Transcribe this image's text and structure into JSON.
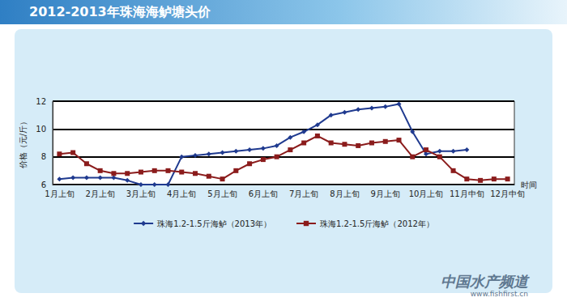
{
  "chart_data": {
    "type": "line",
    "title": "2012-2013年珠海海鲈塘头价",
    "y_label": "价格（元/斤）",
    "x_label": "时间",
    "categories": [
      "1月上旬",
      null,
      null,
      "2月上旬",
      null,
      null,
      "3月上旬",
      null,
      null,
      "4月上旬",
      null,
      null,
      "5月上旬",
      null,
      null,
      "6月上旬",
      null,
      null,
      "7月上旬",
      null,
      null,
      "8月上旬",
      null,
      null,
      "9月上旬",
      null,
      null,
      "10月上旬",
      null,
      null,
      "11月中旬",
      null,
      null,
      "12月中旬"
    ],
    "series": [
      {
        "name": "珠海1.2-1.5斤海鲈（2013年）",
        "color": "#1f3a8f",
        "marker": "diamond",
        "line_style": "solid",
        "values": [
          6.4,
          6.5,
          6.5,
          6.5,
          6.5,
          6.3,
          6.0,
          6.0,
          6.0,
          8.0,
          8.1,
          8.2,
          8.3,
          8.4,
          8.5,
          8.6,
          8.8,
          9.4,
          9.8,
          10.3,
          11.0,
          11.2,
          11.4,
          11.5,
          11.6,
          11.8,
          9.8,
          8.2,
          8.4,
          8.4,
          8.5,
          null,
          null,
          null
        ]
      },
      {
        "name": "珠海1.2-1.5斤海鲈（2012年）",
        "color": "#8b1c1c",
        "marker": "square",
        "line_style": "solid",
        "values": [
          8.2,
          8.3,
          7.5,
          7.0,
          6.8,
          6.8,
          6.9,
          7.0,
          7.0,
          6.9,
          6.8,
          6.6,
          6.4,
          7.0,
          7.5,
          7.8,
          8.0,
          8.5,
          9.0,
          9.5,
          9.0,
          8.9,
          8.8,
          9.0,
          9.1,
          9.2,
          8.0,
          8.5,
          8.0,
          7.0,
          6.4,
          6.3,
          6.4,
          6.4
        ]
      }
    ],
    "ylim": [
      6,
      12
    ],
    "yticks": [
      6,
      8,
      10,
      12
    ],
    "grid": true,
    "legend": "bottom",
    "annotations": [
      "中国水产频道",
      "www.fishfirst.cn"
    ]
  }
}
